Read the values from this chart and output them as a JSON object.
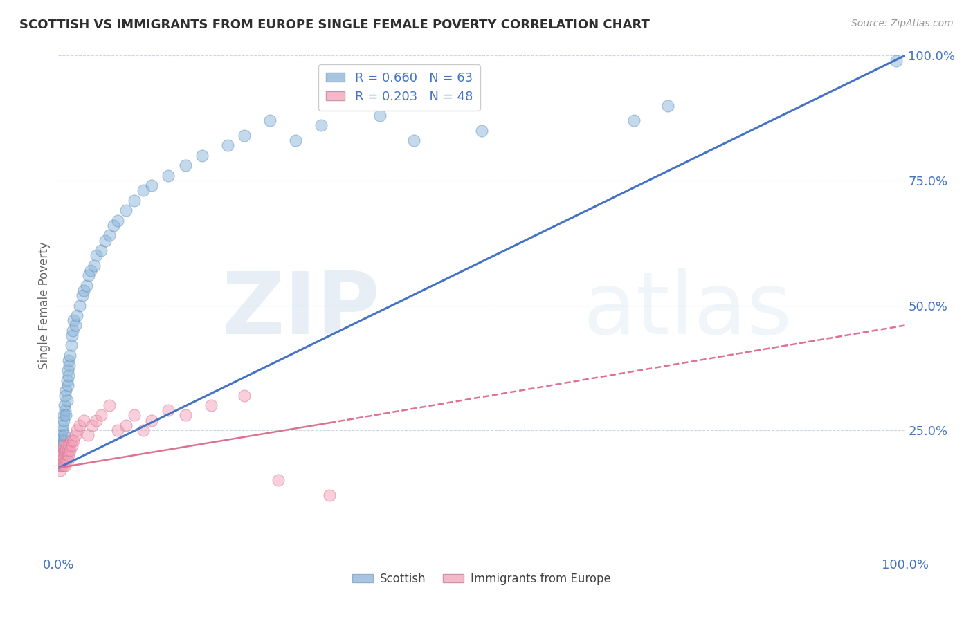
{
  "title": "SCOTTISH VS IMMIGRANTS FROM EUROPE SINGLE FEMALE POVERTY CORRELATION CHART",
  "source": "Source: ZipAtlas.com",
  "ylabel": "Single Female Poverty",
  "xlim": [
    0,
    1.0
  ],
  "ylim": [
    0,
    1.0
  ],
  "xtick_labels": [
    "0.0%",
    "100.0%"
  ],
  "ytick_labels": [
    "25.0%",
    "50.0%",
    "75.0%",
    "100.0%"
  ],
  "ytick_positions": [
    0.25,
    0.5,
    0.75,
    1.0
  ],
  "legend_entries": [
    {
      "label": "R = 0.660   N = 63",
      "color": "#a8c4e0"
    },
    {
      "label": "R = 0.203   N = 48",
      "color": "#f4b8c8"
    }
  ],
  "scatter_scottish": {
    "color": "#8ab4d8",
    "edge_color": "#6090bb",
    "alpha": 0.5,
    "size": 150,
    "x": [
      0.002,
      0.003,
      0.003,
      0.004,
      0.004,
      0.004,
      0.005,
      0.005,
      0.005,
      0.006,
      0.006,
      0.006,
      0.007,
      0.007,
      0.008,
      0.008,
      0.009,
      0.009,
      0.01,
      0.01,
      0.011,
      0.011,
      0.012,
      0.012,
      0.013,
      0.014,
      0.015,
      0.016,
      0.017,
      0.018,
      0.02,
      0.022,
      0.025,
      0.028,
      0.03,
      0.033,
      0.036,
      0.038,
      0.042,
      0.045,
      0.05,
      0.055,
      0.06,
      0.065,
      0.07,
      0.08,
      0.09,
      0.1,
      0.11,
      0.13,
      0.15,
      0.17,
      0.2,
      0.22,
      0.25,
      0.28,
      0.31,
      0.38,
      0.42,
      0.5,
      0.68,
      0.72,
      0.99
    ],
    "y": [
      0.21,
      0.2,
      0.22,
      0.22,
      0.23,
      0.24,
      0.21,
      0.25,
      0.26,
      0.23,
      0.27,
      0.28,
      0.24,
      0.3,
      0.29,
      0.32,
      0.28,
      0.33,
      0.31,
      0.35,
      0.34,
      0.37,
      0.36,
      0.39,
      0.38,
      0.4,
      0.42,
      0.44,
      0.45,
      0.47,
      0.46,
      0.48,
      0.5,
      0.52,
      0.53,
      0.54,
      0.56,
      0.57,
      0.58,
      0.6,
      0.61,
      0.63,
      0.64,
      0.66,
      0.67,
      0.69,
      0.71,
      0.73,
      0.74,
      0.76,
      0.78,
      0.8,
      0.82,
      0.84,
      0.87,
      0.83,
      0.86,
      0.88,
      0.83,
      0.85,
      0.87,
      0.9,
      0.99
    ]
  },
  "scatter_immigrant": {
    "color": "#f4a0b8",
    "edge_color": "#d07090",
    "alpha": 0.5,
    "size": 150,
    "x": [
      0.001,
      0.002,
      0.002,
      0.003,
      0.003,
      0.003,
      0.004,
      0.004,
      0.005,
      0.005,
      0.006,
      0.006,
      0.007,
      0.007,
      0.008,
      0.008,
      0.009,
      0.009,
      0.01,
      0.01,
      0.011,
      0.011,
      0.012,
      0.013,
      0.014,
      0.015,
      0.016,
      0.018,
      0.02,
      0.022,
      0.025,
      0.03,
      0.035,
      0.04,
      0.045,
      0.05,
      0.06,
      0.07,
      0.08,
      0.09,
      0.1,
      0.11,
      0.13,
      0.15,
      0.18,
      0.22,
      0.26,
      0.32
    ],
    "y": [
      0.18,
      0.17,
      0.19,
      0.18,
      0.2,
      0.19,
      0.18,
      0.21,
      0.19,
      0.2,
      0.18,
      0.22,
      0.19,
      0.21,
      0.18,
      0.2,
      0.19,
      0.21,
      0.2,
      0.22,
      0.19,
      0.21,
      0.2,
      0.22,
      0.21,
      0.23,
      0.22,
      0.23,
      0.24,
      0.25,
      0.26,
      0.27,
      0.24,
      0.26,
      0.27,
      0.28,
      0.3,
      0.25,
      0.26,
      0.28,
      0.25,
      0.27,
      0.29,
      0.28,
      0.3,
      0.32,
      0.15,
      0.12
    ]
  },
  "regression_scottish": {
    "x_start": 0.0,
    "y_start": 0.175,
    "x_end": 1.0,
    "y_end": 1.0,
    "color": "#4472c4",
    "linewidth": 2.2,
    "linestyle": "solid"
  },
  "regression_immigrant_solid": {
    "x_start": 0.0,
    "y_start": 0.175,
    "x_end": 0.32,
    "y_end": 0.265,
    "color": "#e07090",
    "linewidth": 1.8,
    "linestyle": "solid"
  },
  "regression_immigrant_dashed": {
    "x_start": 0.32,
    "y_start": 0.265,
    "x_end": 1.0,
    "y_end": 0.46,
    "color": "#e07090",
    "linewidth": 1.8,
    "linestyle": "dashed"
  },
  "background_color": "#ffffff",
  "grid_color": "#c8d8e8",
  "title_color": "#2f2f2f",
  "axis_color": "#4472c4"
}
